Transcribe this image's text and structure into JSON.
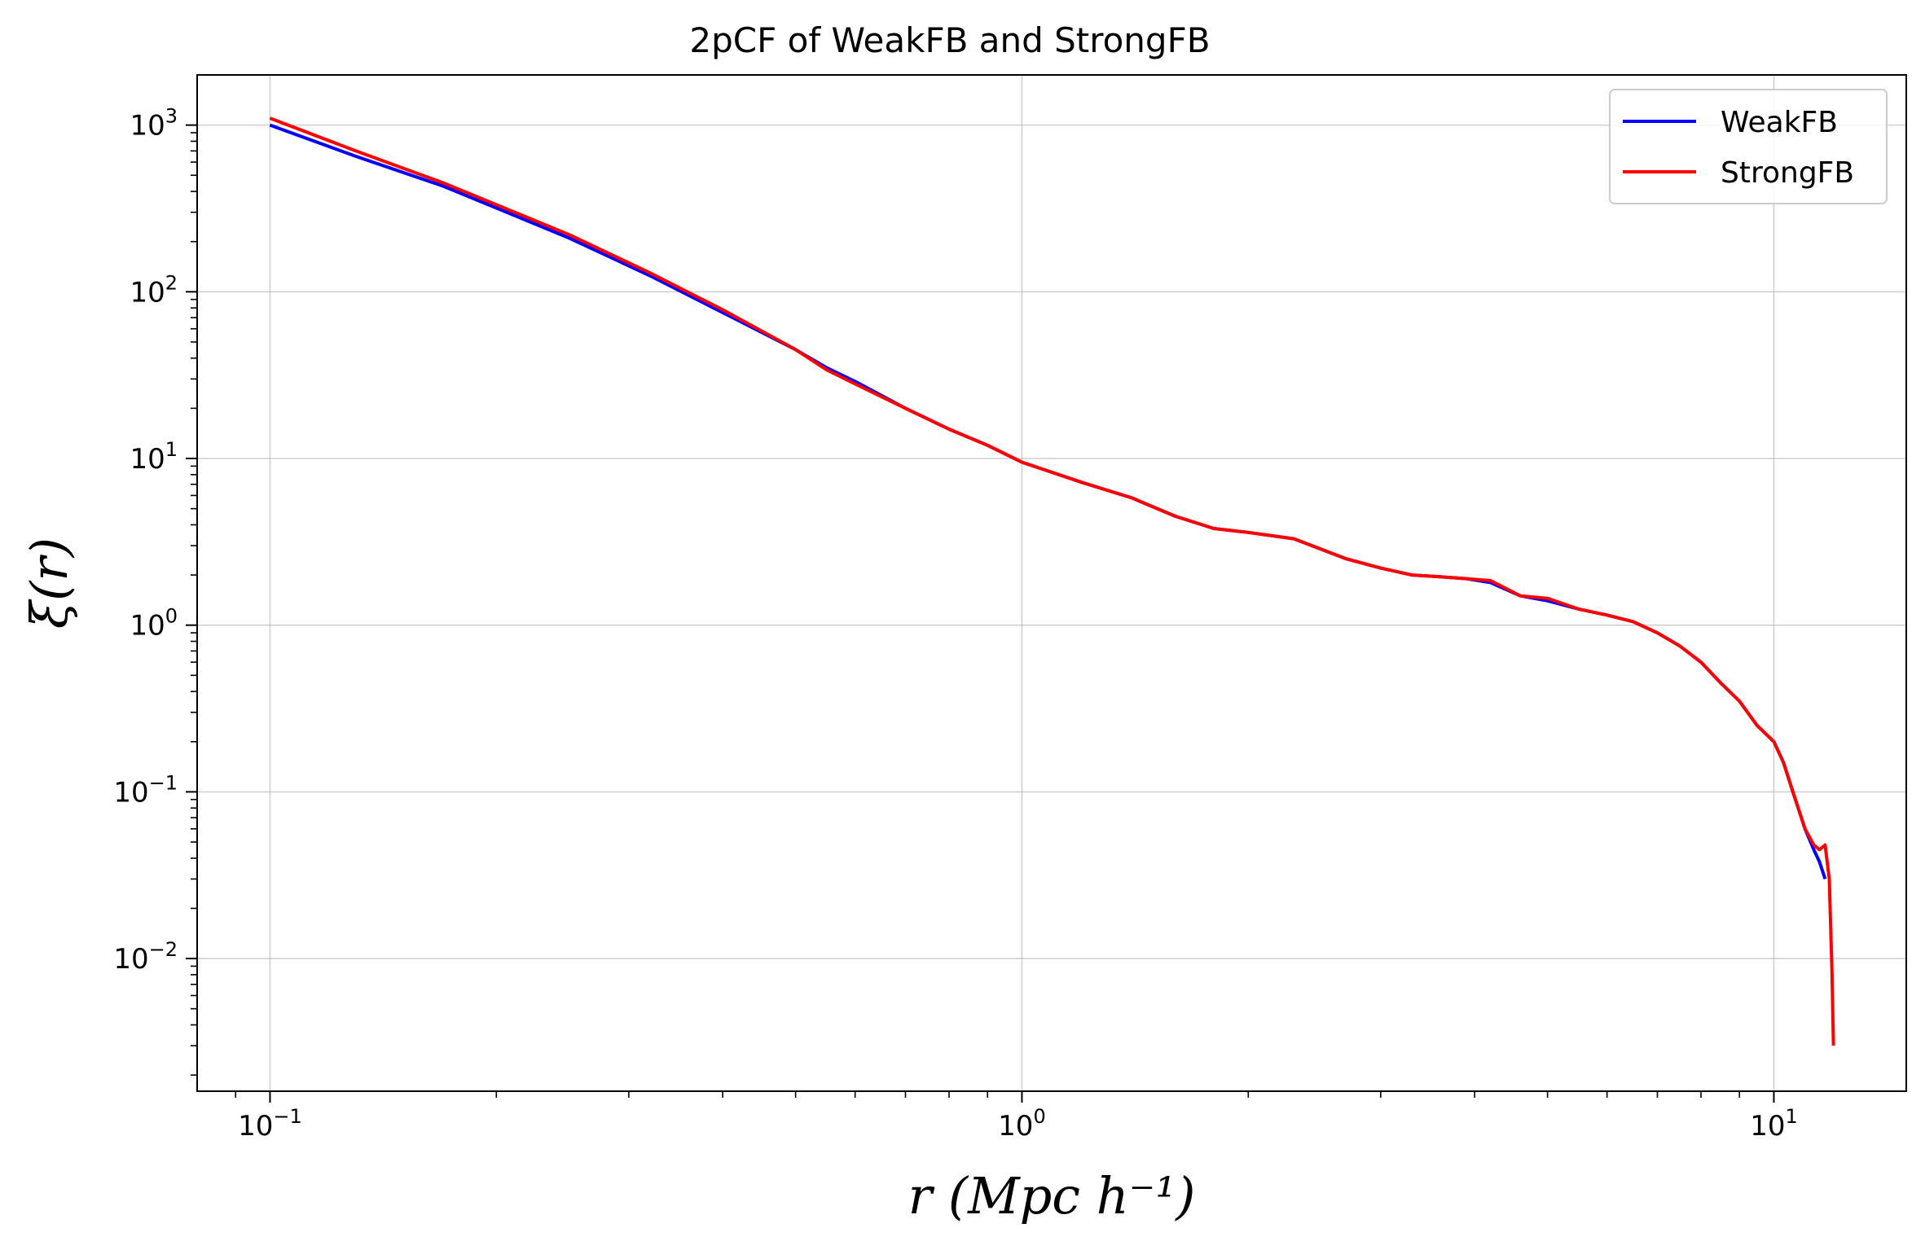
{
  "chart_data": {
    "type": "line",
    "title": "2pCF of WeakFB and StrongFB",
    "xlabel": "r (Mpc h⁻¹)",
    "ylabel": "ξ(r)",
    "xscale": "log",
    "yscale": "log",
    "xlim": [
      0.08,
      15.0
    ],
    "ylim": [
      0.0016,
      2000
    ],
    "grid": true,
    "legend_position": "top-right",
    "x_ticks": [
      {
        "value": 0.1,
        "base": "10",
        "exp": "−1"
      },
      {
        "value": 1,
        "base": "10",
        "exp": "0"
      },
      {
        "value": 10,
        "base": "10",
        "exp": "1"
      }
    ],
    "y_ticks": [
      {
        "value": 0.01,
        "base": "10",
        "exp": "−2"
      },
      {
        "value": 0.1,
        "base": "10",
        "exp": "−1"
      },
      {
        "value": 1,
        "base": "10",
        "exp": "0"
      },
      {
        "value": 10,
        "base": "10",
        "exp": "1"
      },
      {
        "value": 100,
        "base": "10",
        "exp": "2"
      },
      {
        "value": 1000,
        "base": "10",
        "exp": "3"
      }
    ],
    "series": [
      {
        "name": "WeakFB",
        "color": "#0000ff",
        "points": [
          [
            0.1,
            1000
          ],
          [
            0.13,
            650
          ],
          [
            0.17,
            430
          ],
          [
            0.25,
            210
          ],
          [
            0.32,
            125
          ],
          [
            0.4,
            75
          ],
          [
            0.5,
            45
          ],
          [
            0.55,
            35
          ],
          [
            0.6,
            29
          ],
          [
            0.7,
            20
          ],
          [
            0.8,
            15
          ],
          [
            0.9,
            12
          ],
          [
            1.0,
            9.5
          ],
          [
            1.2,
            7.2
          ],
          [
            1.4,
            5.8
          ],
          [
            1.6,
            4.5
          ],
          [
            1.8,
            3.8
          ],
          [
            2.0,
            3.6
          ],
          [
            2.3,
            3.3
          ],
          [
            2.7,
            2.5
          ],
          [
            3.0,
            2.2
          ],
          [
            3.3,
            2.0
          ],
          [
            3.6,
            1.95
          ],
          [
            3.9,
            1.9
          ],
          [
            4.2,
            1.8
          ],
          [
            4.6,
            1.5
          ],
          [
            5.0,
            1.4
          ],
          [
            5.5,
            1.25
          ],
          [
            6.0,
            1.15
          ],
          [
            6.5,
            1.05
          ],
          [
            7.0,
            0.9
          ],
          [
            7.5,
            0.75
          ],
          [
            8.0,
            0.6
          ],
          [
            8.5,
            0.45
          ],
          [
            9.0,
            0.35
          ],
          [
            9.5,
            0.25
          ],
          [
            10.0,
            0.2
          ],
          [
            10.3,
            0.15
          ],
          [
            10.6,
            0.1
          ],
          [
            11.0,
            0.06
          ],
          [
            11.3,
            0.045
          ],
          [
            11.5,
            0.038
          ],
          [
            11.7,
            0.03
          ]
        ]
      },
      {
        "name": "StrongFB",
        "color": "#ff0000",
        "points": [
          [
            0.1,
            1100
          ],
          [
            0.13,
            700
          ],
          [
            0.17,
            450
          ],
          [
            0.25,
            220
          ],
          [
            0.32,
            130
          ],
          [
            0.4,
            78
          ],
          [
            0.5,
            45
          ],
          [
            0.55,
            34
          ],
          [
            0.6,
            28
          ],
          [
            0.7,
            20
          ],
          [
            0.8,
            15
          ],
          [
            0.9,
            12
          ],
          [
            1.0,
            9.5
          ],
          [
            1.2,
            7.2
          ],
          [
            1.4,
            5.8
          ],
          [
            1.6,
            4.5
          ],
          [
            1.8,
            3.8
          ],
          [
            2.0,
            3.6
          ],
          [
            2.3,
            3.3
          ],
          [
            2.7,
            2.5
          ],
          [
            3.0,
            2.2
          ],
          [
            3.3,
            2.0
          ],
          [
            3.6,
            1.95
          ],
          [
            3.9,
            1.9
          ],
          [
            4.2,
            1.85
          ],
          [
            4.6,
            1.5
          ],
          [
            5.0,
            1.45
          ],
          [
            5.5,
            1.25
          ],
          [
            6.0,
            1.15
          ],
          [
            6.5,
            1.05
          ],
          [
            7.0,
            0.9
          ],
          [
            7.5,
            0.75
          ],
          [
            8.0,
            0.6
          ],
          [
            8.5,
            0.45
          ],
          [
            9.0,
            0.35
          ],
          [
            9.5,
            0.25
          ],
          [
            10.0,
            0.2
          ],
          [
            10.3,
            0.15
          ],
          [
            10.6,
            0.1
          ],
          [
            11.0,
            0.06
          ],
          [
            11.3,
            0.048
          ],
          [
            11.5,
            0.045
          ],
          [
            11.7,
            0.048
          ],
          [
            11.85,
            0.03
          ],
          [
            11.95,
            0.008
          ],
          [
            12.0,
            0.003
          ]
        ]
      }
    ]
  }
}
